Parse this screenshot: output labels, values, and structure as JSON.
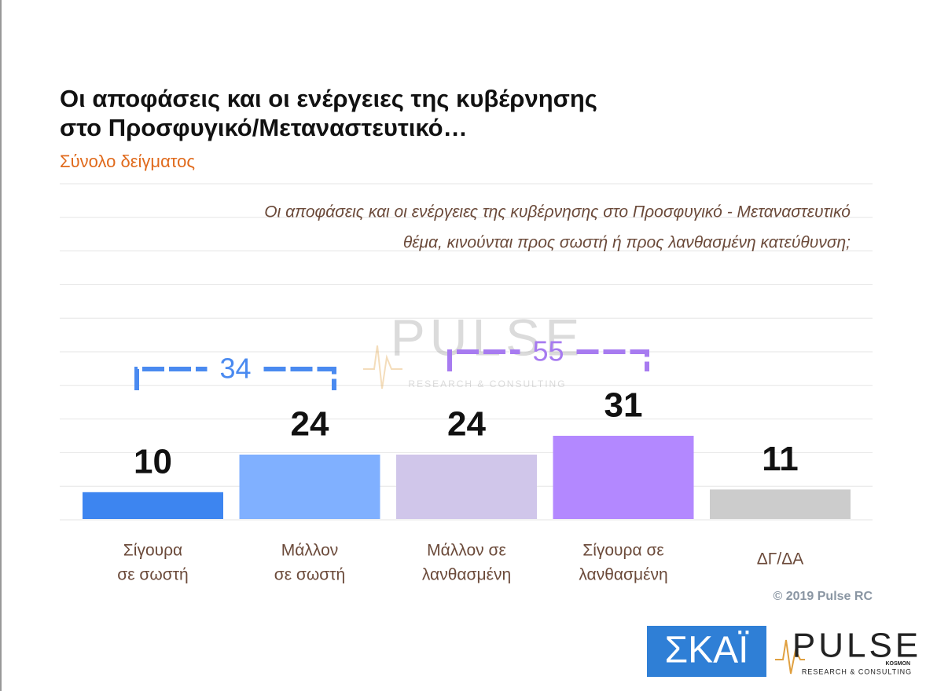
{
  "chart_data": {
    "type": "bar",
    "title": [
      "Οι αποφάσεις και οι ενέργειες της κυβέρνησης",
      "στο Προσφυγικό/Μεταναστευτικό…"
    ],
    "subtitle": "Σύνολο δείγματος",
    "question": [
      "Οι αποφάσεις και οι ενέργειες της κυβέρνησης στο Προσφυγικό - Μεταναστευτικό",
      "θέμα, κινούνται προς σωστή ή προς λανθασμένη κατεύθυνση;"
    ],
    "categories": [
      [
        "Σίγουρα",
        "σε σωστή"
      ],
      [
        "Μάλλον",
        "σε σωστή"
      ],
      [
        "Μάλλον σε",
        "λανθασμένη"
      ],
      [
        "Σίγουρα σε",
        "λανθασμένη"
      ],
      [
        "ΔΓ/ΔΑ"
      ]
    ],
    "values": [
      10,
      24,
      24,
      31,
      11
    ],
    "colors": [
      "#3d85f0",
      "#80b0ff",
      "#d0c6ea",
      "#b388ff",
      "#cccccc"
    ],
    "annotations": [
      34,
      55
    ],
    "annotation_colors": [
      "#4a8af0",
      "#a77bf0"
    ],
    "copyright": "© 2019 Pulse RC",
    "logos": {
      "skai": "ΣΚΑΪ",
      "pulse": "PULSE",
      "pulse_sub": "KOSMON",
      "pulse_tag": "RESEARCH & CONSULTING"
    }
  }
}
